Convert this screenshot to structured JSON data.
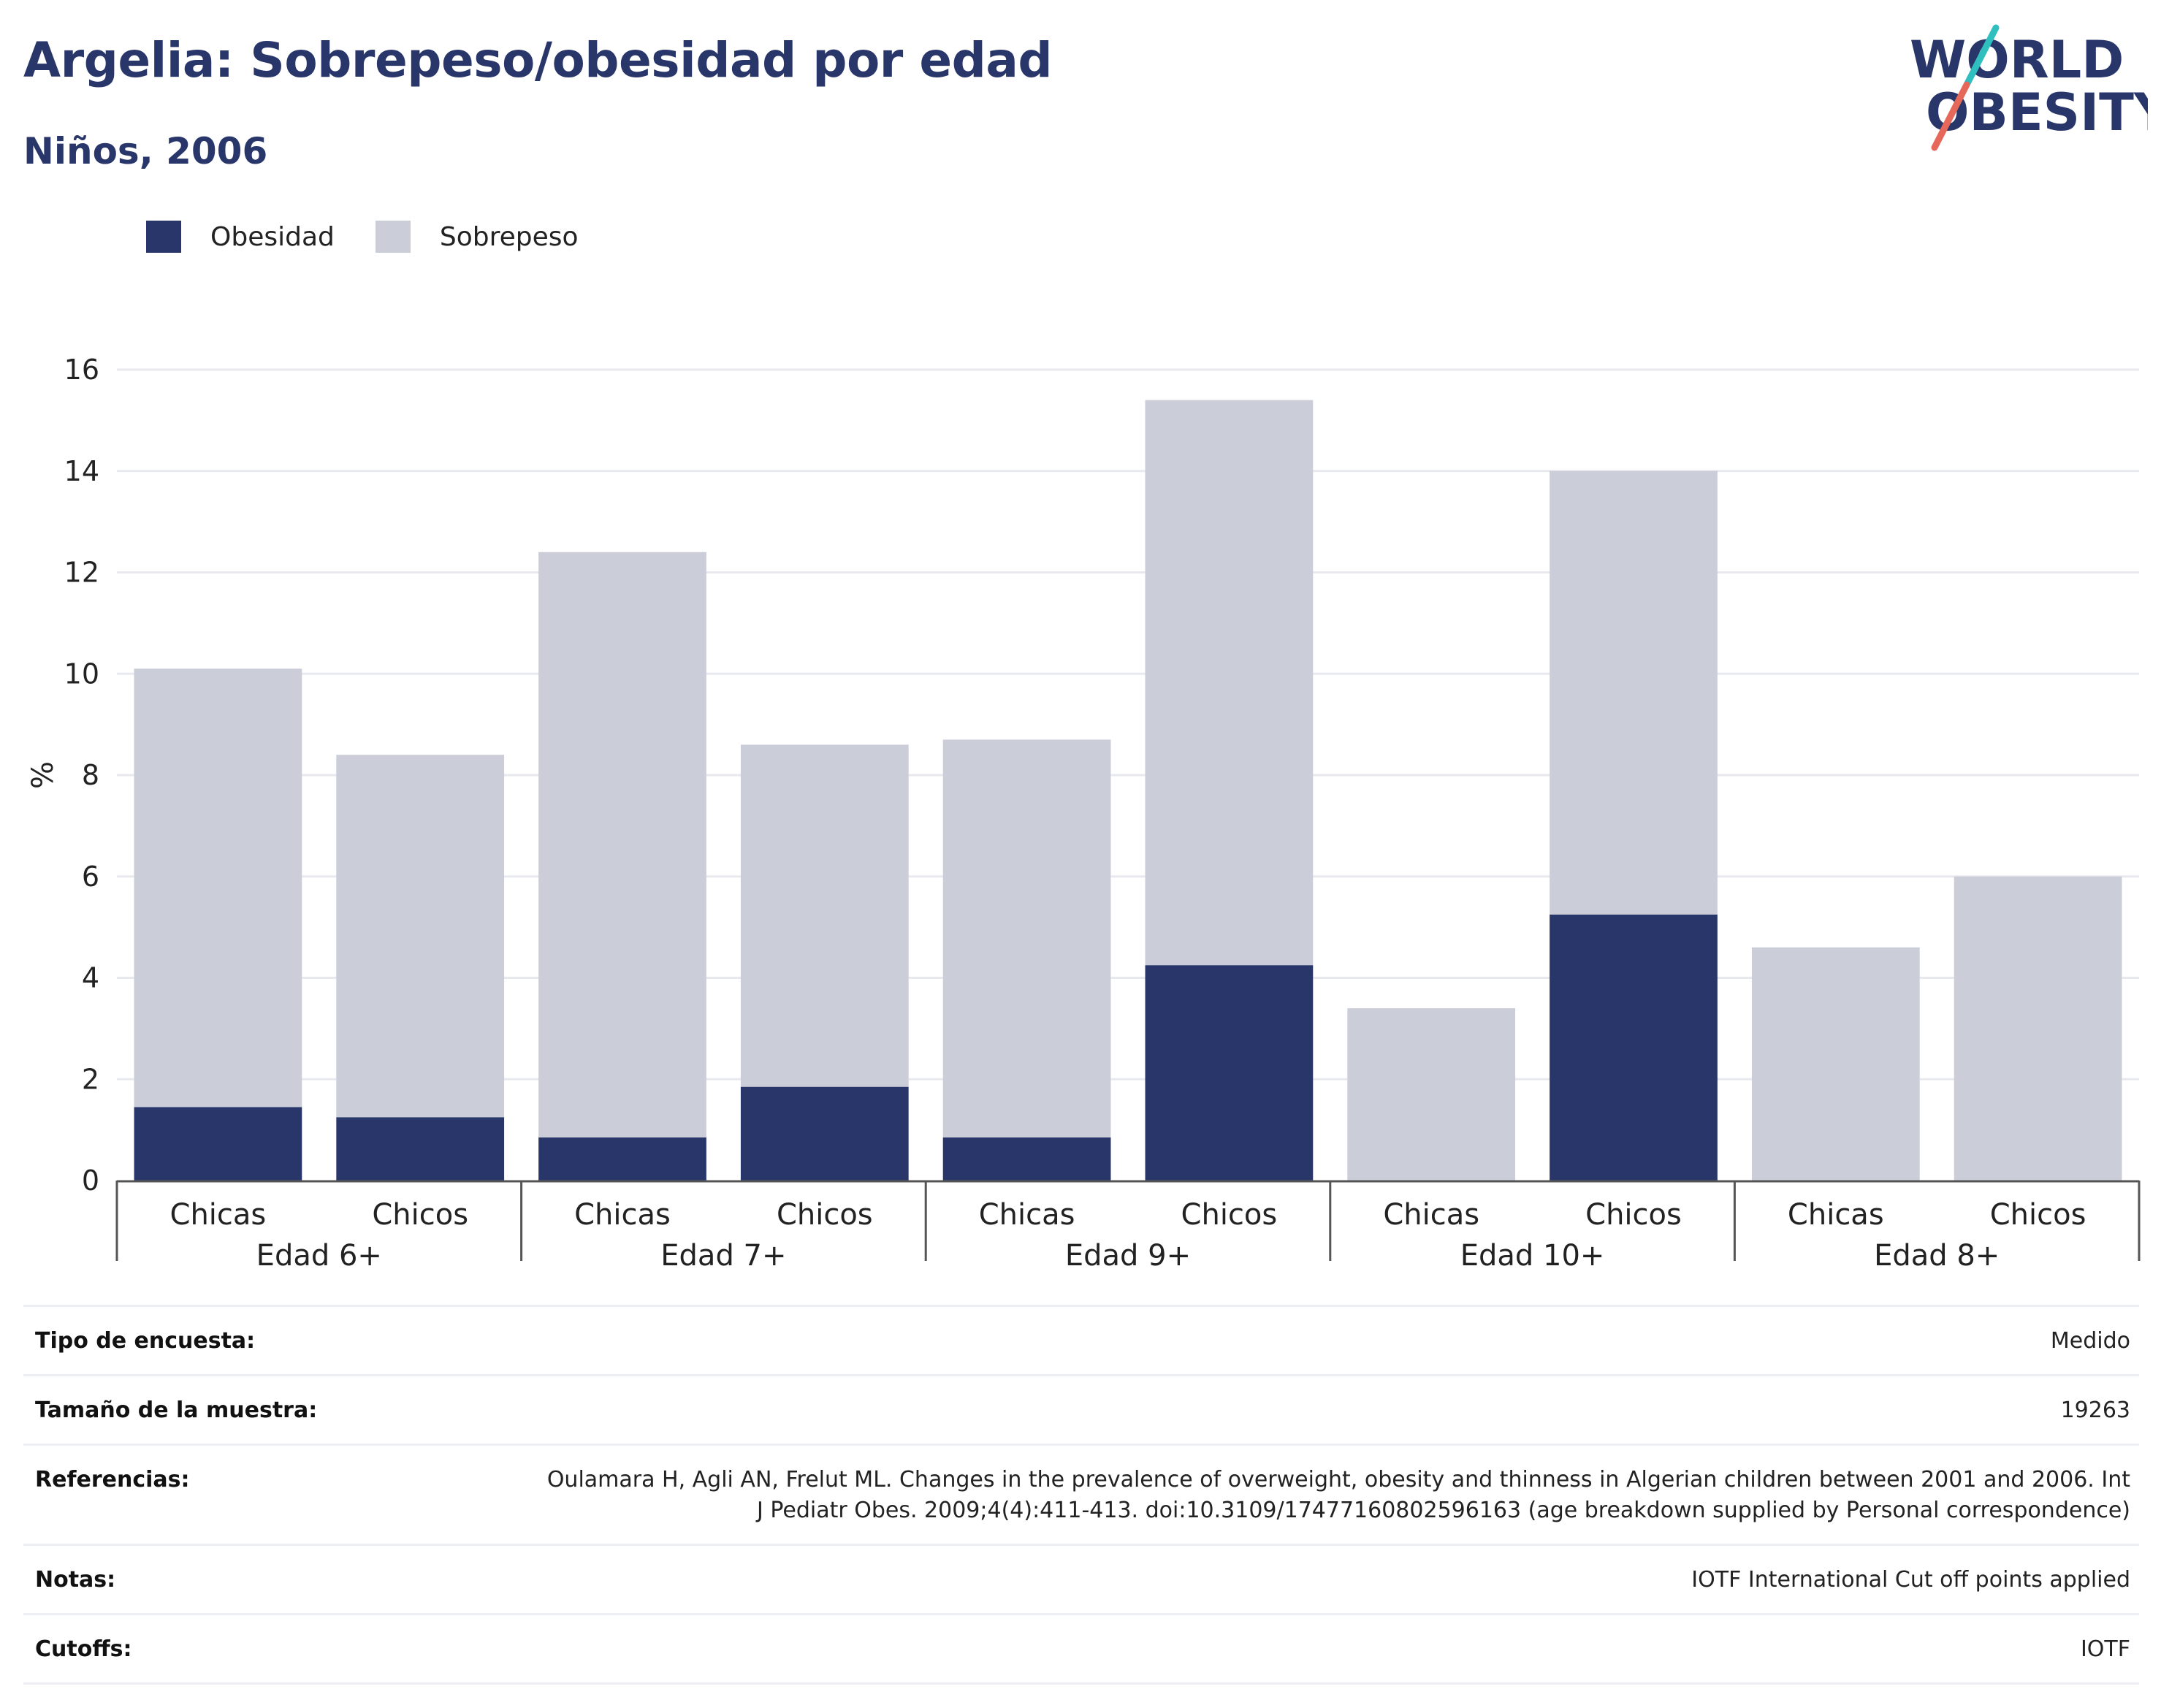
{
  "header": {
    "title": "Argelia: Sobrepeso/obesidad por edad",
    "subtitle": "Niños, 2006"
  },
  "logo": {
    "line1": "WORLD",
    "line2": "OBESITY"
  },
  "legend": [
    {
      "label": "Obesidad",
      "color": "#29366a"
    },
    {
      "label": "Sobrepeso",
      "color": "#cbcdd9"
    }
  ],
  "chart_data": {
    "type": "bar",
    "stacked": true,
    "ylabel": "%",
    "ylim": [
      0,
      16
    ],
    "yticks": [
      0,
      2,
      4,
      6,
      8,
      10,
      12,
      14,
      16
    ],
    "grid": true,
    "legend_position": "top-left",
    "groups": [
      "Edad 6+",
      "Edad 7+",
      "Edad 9+",
      "Edad 10+",
      "Edad 8+"
    ],
    "categories": [
      "Chicas",
      "Chicos",
      "Chicas",
      "Chicos",
      "Chicas",
      "Chicos",
      "Chicas",
      "Chicos",
      "Chicas",
      "Chicos"
    ],
    "series": [
      {
        "name": "Obesidad",
        "color": "#29366a",
        "values": [
          1.45,
          1.25,
          0.85,
          1.85,
          0.85,
          4.25,
          0,
          5.25,
          0,
          0
        ]
      },
      {
        "name": "Sobrepeso",
        "color": "#cbcdd9",
        "values": [
          8.65,
          7.15,
          11.55,
          6.75,
          7.85,
          11.15,
          3.4,
          8.75,
          4.6,
          6.0
        ]
      }
    ]
  },
  "meta": [
    {
      "label": "Tipo de encuesta:",
      "value": "Medido"
    },
    {
      "label": "Tamaño de la muestra:",
      "value": "19263"
    },
    {
      "label": "Referencias:",
      "value": "Oulamara H, Agli AN, Frelut ML. Changes in the prevalence of overweight, obesity and thinness in Algerian children between 2001 and 2006. Int J Pediatr Obes. 2009;4(4):411-413. doi:10.3109/17477160802596163 (age breakdown supplied by Personal correspondence)"
    },
    {
      "label": "Notas:",
      "value": "IOTF International Cut off points applied"
    },
    {
      "label": "Cutoffs:",
      "value": "IOTF"
    }
  ]
}
